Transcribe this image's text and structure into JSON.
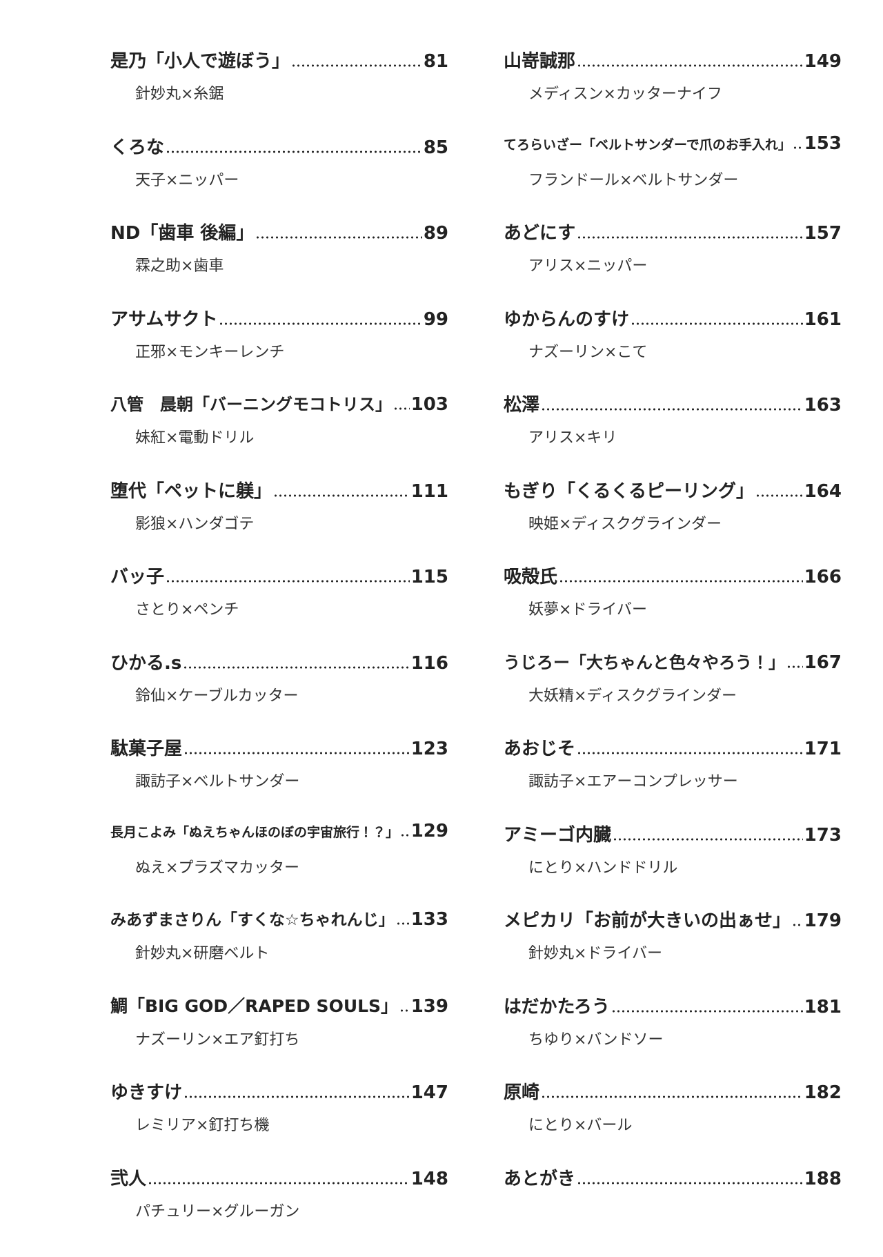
{
  "columns": [
    {
      "entries": [
        {
          "title": "是乃「小人で遊ぼう」",
          "page": 81,
          "sub": "針妙丸×糸鋸"
        },
        {
          "title": "くろな",
          "page": 85,
          "sub": "天子×ニッパー"
        },
        {
          "title": "ND「歯車 後編」",
          "page": 89,
          "sub": "霖之助×歯車"
        },
        {
          "title": "アサムサクト",
          "page": 99,
          "sub": "正邪×モンキーレンチ"
        },
        {
          "title": "八管　晨朝「バーニングモコトリス」",
          "page": 103,
          "sub": "妹紅×電動ドリル"
        },
        {
          "title": "堕代「ペットに躾」",
          "page": 111,
          "sub": "影狼×ハンダゴテ"
        },
        {
          "title": "バッ子",
          "page": 115,
          "sub": "さとり×ペンチ"
        },
        {
          "title": "ひかる.s",
          "page": 116,
          "sub": "鈴仙×ケーブルカッター"
        },
        {
          "title": "駄菓子屋",
          "page": 123,
          "sub": "諏訪子×ベルトサンダー"
        },
        {
          "title": "長月こよみ「ぬえちゃんほのぼの宇宙旅行！？」",
          "page": 129,
          "sub": "ぬえ×プラズマカッター"
        },
        {
          "title": "みあずまさりん「すくな☆ちゃれんじ」",
          "page": 133,
          "sub": "針妙丸×研磨ベルト"
        },
        {
          "title": "鯛「BIG GOD／RAPED SOULS」",
          "page": 139,
          "sub": "ナズーリン×エア釘打ち"
        },
        {
          "title": "ゆきすけ",
          "page": 147,
          "sub": "レミリア×釘打ち機"
        },
        {
          "title": "弐人",
          "page": 148,
          "sub": "パチュリー×グルーガン"
        }
      ]
    },
    {
      "entries": [
        {
          "title": "山嵜誠那",
          "page": 149,
          "sub": "メディスン×カッターナイフ"
        },
        {
          "title": "てろらいざー「ベルトサンダーで爪のお手入れ」",
          "page": 153,
          "sub": "フランドール×ベルトサンダー"
        },
        {
          "title": "あどにす",
          "page": 157,
          "sub": "アリス×ニッパー"
        },
        {
          "title": "ゆからんのすけ",
          "page": 161,
          "sub": "ナズーリン×こて"
        },
        {
          "title": "松澤",
          "page": 163,
          "sub": "アリス×キリ"
        },
        {
          "title": "もぎり「くるくるピーリング」",
          "page": 164,
          "sub": "映姫×ディスクグラインダー"
        },
        {
          "title": "吸殻氏",
          "page": 166,
          "sub": "妖夢×ドライバー"
        },
        {
          "title": "うじろー「大ちゃんと色々やろう！」",
          "page": 167,
          "sub": "大妖精×ディスクグラインダー"
        },
        {
          "title": "あおじそ",
          "page": 171,
          "sub": "諏訪子×エアーコンプレッサー"
        },
        {
          "title": "アミーゴ内臓",
          "page": 173,
          "sub": "にとり×ハンドドリル"
        },
        {
          "title": "メピカリ「お前が大きいの出ぁせ」",
          "page": 179,
          "sub": "針妙丸×ドライバー"
        },
        {
          "title": "はだかたろう",
          "page": 181,
          "sub": "ちゆり×バンドソー"
        },
        {
          "title": "原崎",
          "page": 182,
          "sub": "にとり×バール"
        },
        {
          "title": "あとがき",
          "page": 188
        }
      ]
    }
  ]
}
